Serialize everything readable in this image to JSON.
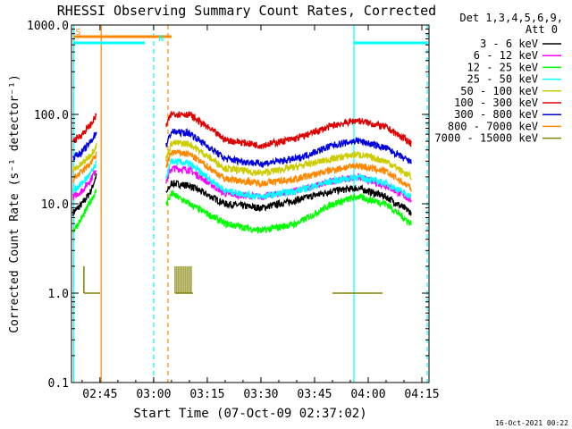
{
  "chart_data": {
    "type": "line",
    "title": "RHESSI Observing Summary Count Rates, Corrected",
    "xlabel": "Start Time (07-Oct-09 02:37:02)",
    "ylabel": "Corrected Count Rate (s⁻¹ detector⁻¹)",
    "y_scale": "log",
    "ylim": [
      0.1,
      1000
    ],
    "xlim": [
      "02:37:02",
      "04:17:00"
    ],
    "x_ticks": [
      "02:45",
      "03:00",
      "03:15",
      "03:30",
      "03:45",
      "04:00",
      "04:15"
    ],
    "y_ticks": [
      "1000.0",
      "100.0",
      "10.0",
      "1.0",
      "0.1"
    ],
    "legend": {
      "position": "top-right",
      "header": [
        "Det 1,3,4,5,6,9,",
        "Att 0"
      ]
    },
    "series": [
      {
        "name": "3 - 6 keV",
        "color": "#000000",
        "points": [
          [
            "02:37:30",
            8
          ],
          [
            "02:40:00",
            10
          ],
          [
            "02:42:30",
            14
          ],
          [
            "02:44:00",
            21
          ],
          [
            "03:03:30",
            13
          ],
          [
            "03:05:00",
            17
          ],
          [
            "03:10:00",
            16
          ],
          [
            "03:20:00",
            10
          ],
          [
            "03:30:00",
            9
          ],
          [
            "03:40:00",
            11
          ],
          [
            "03:50:00",
            14
          ],
          [
            "03:57:00",
            15
          ],
          [
            "04:05:00",
            12
          ],
          [
            "04:12:00",
            8
          ]
        ]
      },
      {
        "name": "6 - 12 keV",
        "color": "#ff00ff",
        "points": [
          [
            "02:37:30",
            12
          ],
          [
            "02:40:00",
            14
          ],
          [
            "02:42:30",
            19
          ],
          [
            "02:44:00",
            25
          ],
          [
            "03:03:30",
            18
          ],
          [
            "03:05:00",
            25
          ],
          [
            "03:10:00",
            24
          ],
          [
            "03:20:00",
            13
          ],
          [
            "03:30:00",
            12
          ],
          [
            "03:40:00",
            14
          ],
          [
            "03:50:00",
            18
          ],
          [
            "03:57:00",
            20
          ],
          [
            "04:05:00",
            16
          ],
          [
            "04:12:00",
            11
          ]
        ]
      },
      {
        "name": "12 - 25 keV",
        "color": "#00ff00",
        "points": [
          [
            "02:37:30",
            5
          ],
          [
            "02:40:00",
            7
          ],
          [
            "02:42:30",
            11
          ],
          [
            "02:44:00",
            14
          ],
          [
            "03:03:30",
            10
          ],
          [
            "03:05:00",
            13
          ],
          [
            "03:10:00",
            10
          ],
          [
            "03:20:00",
            6
          ],
          [
            "03:30:00",
            5
          ],
          [
            "03:40:00",
            6
          ],
          [
            "03:50:00",
            10
          ],
          [
            "03:57:00",
            12
          ],
          [
            "04:05:00",
            10
          ],
          [
            "04:12:00",
            6
          ]
        ]
      },
      {
        "name": "25 - 50 keV",
        "color": "#00ffff",
        "points": [
          [
            "02:37:30",
            14
          ],
          [
            "02:40:00",
            17
          ],
          [
            "02:42:30",
            22
          ],
          [
            "02:44:00",
            28
          ],
          [
            "03:03:30",
            20
          ],
          [
            "03:05:00",
            30
          ],
          [
            "03:10:00",
            28
          ],
          [
            "03:20:00",
            14
          ],
          [
            "03:30:00",
            12
          ],
          [
            "03:40:00",
            14
          ],
          [
            "03:50:00",
            18
          ],
          [
            "03:57:00",
            20
          ],
          [
            "04:05:00",
            17
          ],
          [
            "04:12:00",
            12
          ]
        ]
      },
      {
        "name": "50 - 100 keV",
        "color": "#cccc00",
        "points": [
          [
            "02:37:30",
            24
          ],
          [
            "02:40:00",
            28
          ],
          [
            "02:42:30",
            36
          ],
          [
            "02:44:00",
            45
          ],
          [
            "03:03:30",
            32
          ],
          [
            "03:05:00",
            48
          ],
          [
            "03:10:00",
            47
          ],
          [
            "03:20:00",
            25
          ],
          [
            "03:30:00",
            22
          ],
          [
            "03:40:00",
            26
          ],
          [
            "03:50:00",
            32
          ],
          [
            "03:57:00",
            36
          ],
          [
            "04:05:00",
            30
          ],
          [
            "04:12:00",
            20
          ]
        ]
      },
      {
        "name": "100 - 300 keV",
        "color": "#dd0000",
        "points": [
          [
            "02:37:30",
            50
          ],
          [
            "02:40:00",
            60
          ],
          [
            "02:42:30",
            78
          ],
          [
            "02:44:00",
            98
          ],
          [
            "03:03:30",
            75
          ],
          [
            "03:05:00",
            102
          ],
          [
            "03:10:00",
            100
          ],
          [
            "03:20:00",
            52
          ],
          [
            "03:30:00",
            45
          ],
          [
            "03:40:00",
            54
          ],
          [
            "03:50:00",
            75
          ],
          [
            "03:57:00",
            86
          ],
          [
            "04:05:00",
            72
          ],
          [
            "04:12:00",
            48
          ]
        ]
      },
      {
        "name": "300 - 800 keV",
        "color": "#0000dd",
        "points": [
          [
            "02:37:30",
            33
          ],
          [
            "02:40:00",
            38
          ],
          [
            "02:42:30",
            50
          ],
          [
            "02:44:00",
            64
          ],
          [
            "03:03:30",
            45
          ],
          [
            "03:05:00",
            64
          ],
          [
            "03:10:00",
            62
          ],
          [
            "03:20:00",
            32
          ],
          [
            "03:30:00",
            28
          ],
          [
            "03:40:00",
            32
          ],
          [
            "03:50:00",
            45
          ],
          [
            "03:57:00",
            51
          ],
          [
            "04:05:00",
            42
          ],
          [
            "04:12:00",
            29
          ]
        ]
      },
      {
        "name": "800 - 7000 keV",
        "color": "#ff8800",
        "points": [
          [
            "02:37:30",
            19
          ],
          [
            "02:40:00",
            23
          ],
          [
            "02:42:30",
            29
          ],
          [
            "02:44:00",
            36
          ],
          [
            "03:03:30",
            26
          ],
          [
            "03:05:00",
            38
          ],
          [
            "03:10:00",
            36
          ],
          [
            "03:20:00",
            19
          ],
          [
            "03:30:00",
            17
          ],
          [
            "03:40:00",
            19
          ],
          [
            "03:50:00",
            24
          ],
          [
            "03:57:00",
            27
          ],
          [
            "04:05:00",
            23
          ],
          [
            "04:12:00",
            15
          ]
        ]
      },
      {
        "name": "7000 - 15000 keV",
        "color": "#808000",
        "points": [
          [
            "02:44:00",
            1
          ],
          [
            "03:06:00",
            1
          ],
          [
            "03:09:00",
            1
          ],
          [
            "03:50:00",
            1
          ],
          [
            "04:04:00",
            1
          ]
        ]
      }
    ],
    "flags": [
      {
        "label": "S",
        "color": "#ff8800"
      },
      {
        "label": "N",
        "color": "#00ffff"
      }
    ],
    "timestamp": "16-Oct-2021 00:22"
  }
}
